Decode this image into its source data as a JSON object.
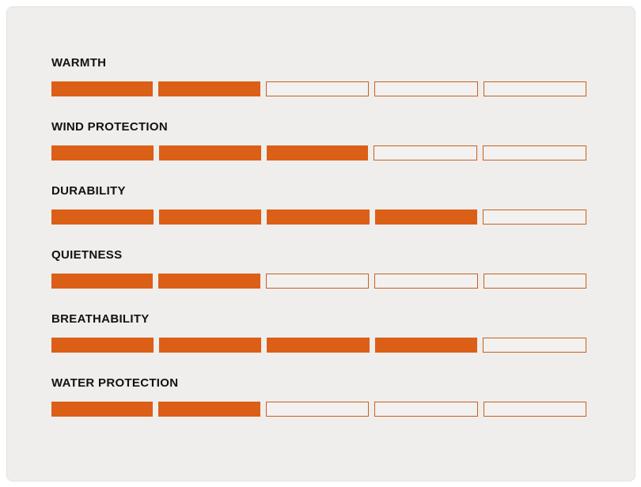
{
  "chart_data": {
    "type": "bar",
    "subtype": "segmented-rating-bars",
    "categories": [
      "WARMTH",
      "WIND PROTECTION",
      "DURABILITY",
      "QUIETNESS",
      "BREATHABILITY",
      "WATER PROTECTION"
    ],
    "values": [
      2,
      3,
      4,
      2,
      4,
      2
    ],
    "scale_max": 5,
    "title": "",
    "xlabel": "",
    "ylabel": "",
    "legend": "none",
    "grid": "off",
    "orientation": "horizontal"
  },
  "colors": {
    "filled_segment": "#DB5F16",
    "empty_segment_border": "#C8611F",
    "empty_segment_fill": "#F2F1EF",
    "panel_background": "#EFEEEC",
    "panel_border": "#E3E2DF",
    "page_background": "#FFFFFF",
    "label_text": "#121212"
  }
}
